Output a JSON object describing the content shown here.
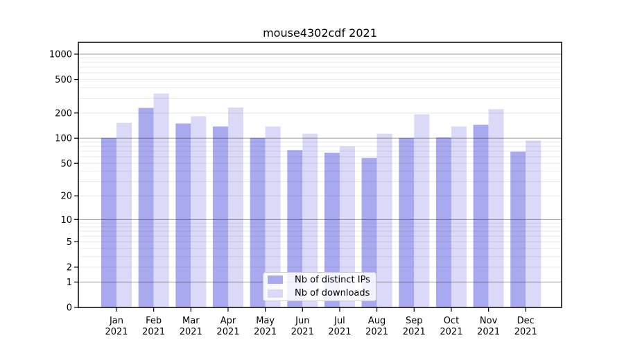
{
  "chart_data": {
    "type": "bar",
    "title": "mouse4302cdf 2021",
    "categories": [
      "Jan",
      "Feb",
      "Mar",
      "Apr",
      "May",
      "Jun",
      "Jul",
      "Aug",
      "Sep",
      "Oct",
      "Nov",
      "Dec"
    ],
    "category_year": "2021",
    "series": [
      {
        "name": "Nb of distinct IPs",
        "color": "#a9a9f0",
        "values": [
          101,
          230,
          150,
          138,
          101,
          72,
          67,
          58,
          101,
          102,
          145,
          69
        ]
      },
      {
        "name": "Nb of downloads",
        "color": "#dadaf8",
        "values": [
          153,
          341,
          183,
          232,
          138,
          113,
          80,
          113,
          193,
          138,
          222,
          94
        ]
      }
    ],
    "xlabel": "",
    "ylabel": "",
    "y_ticks": [
      0,
      1,
      2,
      5,
      10,
      20,
      50,
      100,
      200,
      500,
      1000
    ],
    "y_scale": "log10(value+1)",
    "ylim": [
      0,
      1380
    ],
    "grid": "horizontal major+minor",
    "legend_position": "inside-bottom-center"
  },
  "colors": {
    "bar_distinct_ips": "#a9a9f0",
    "bar_downloads": "#dadaf8",
    "axis": "#000000",
    "grid_major": "#9e9e9e",
    "grid_minor": "#e8e8e8",
    "legend_border": "#cccccc",
    "background": "#ffffff"
  }
}
